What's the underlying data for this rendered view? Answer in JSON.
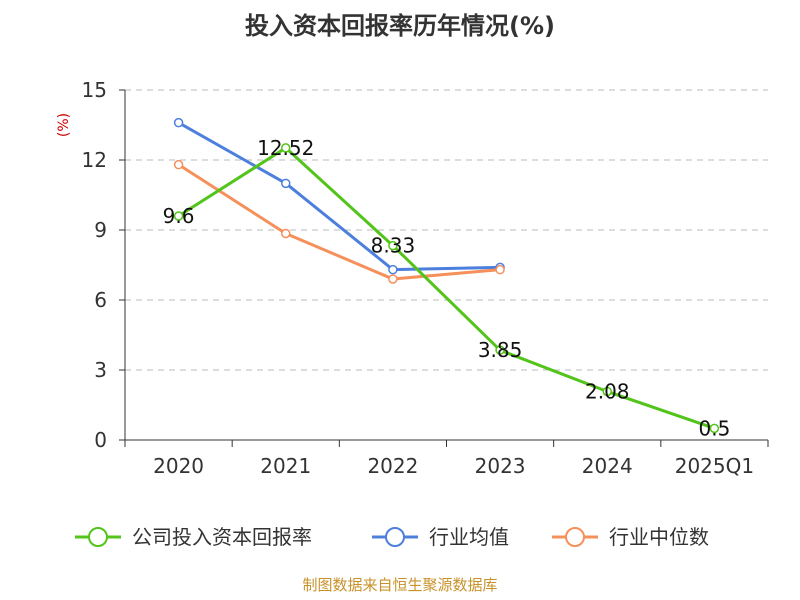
{
  "colors": {
    "company": "#52c41a",
    "industry_avg": "#4d7fdd",
    "industry_median": "#f5905b",
    "source": "#c8922a",
    "ylabel": "#cc0000",
    "grid": "#bbbbbb",
    "axis": "#333333"
  },
  "source_text": "制图数据来自恒生聚源数据库",
  "chart_data": {
    "type": "line",
    "title": "投入资本回报率历年情况(%)",
    "ylabel": "(%)",
    "xlabel": "",
    "categories": [
      "2020",
      "2021",
      "2022",
      "2023",
      "2024",
      "2025Q1"
    ],
    "ylim": [
      0,
      15
    ],
    "yticks": [
      "0",
      "3",
      "6",
      "9",
      "12",
      "15"
    ],
    "grid": true,
    "legend_position": "bottom",
    "series": [
      {
        "key": "company",
        "name": "公司投入资本回报率",
        "values": [
          9.6,
          12.52,
          8.33,
          3.85,
          2.08,
          0.5
        ],
        "labels": [
          "9.6",
          "12.52",
          "8.33",
          "3.85",
          "2.08",
          "0.5"
        ]
      },
      {
        "key": "industry_avg",
        "name": "行业均值",
        "values": [
          13.6,
          11.0,
          7.3,
          7.4,
          null,
          null
        ]
      },
      {
        "key": "industry_median",
        "name": "行业中位数",
        "values": [
          11.8,
          8.85,
          6.9,
          7.3,
          null,
          null
        ]
      }
    ]
  }
}
